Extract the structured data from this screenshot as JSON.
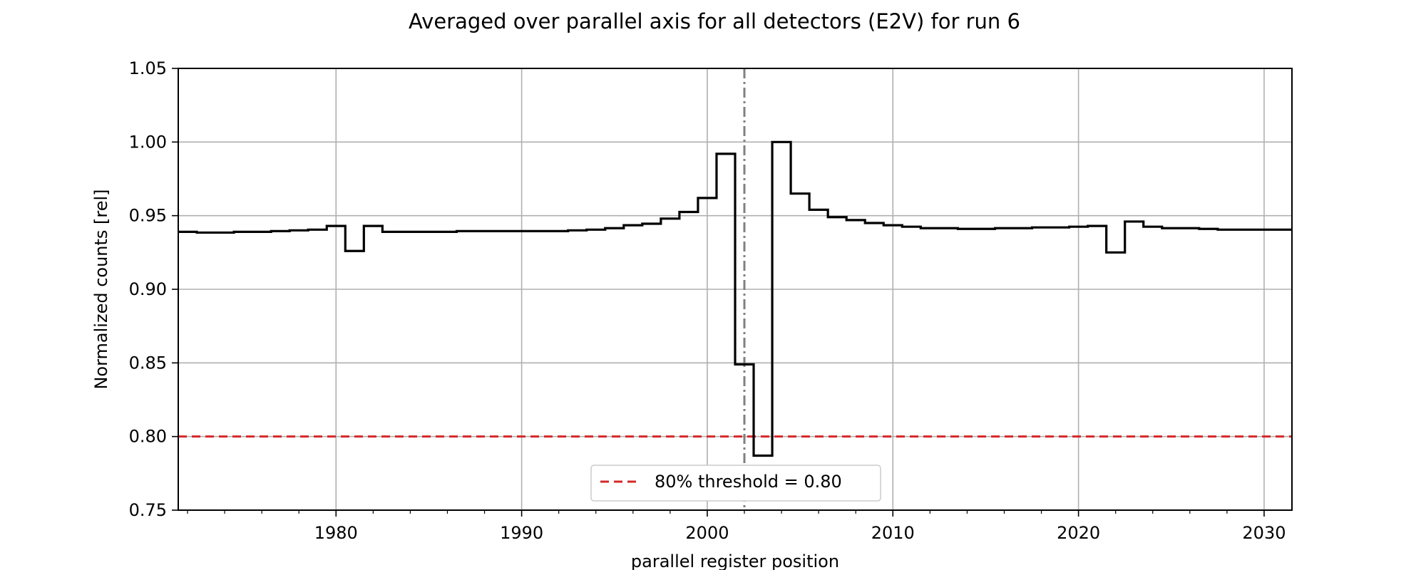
{
  "chart_data": {
    "type": "line",
    "title": "Averaged over parallel axis for all detectors (E2V) for run 6",
    "xlabel": "parallel register position",
    "ylabel": "Normalized counts [rel]",
    "xlim": [
      1971.5,
      2031.5
    ],
    "ylim": [
      0.75,
      1.05
    ],
    "xticks": [
      1980,
      1990,
      2000,
      2010,
      2020,
      2030
    ],
    "yticks": [
      0.75,
      0.8,
      0.85,
      0.9,
      0.95,
      1.0,
      1.05
    ],
    "ytick_labels": [
      "0.75",
      "0.80",
      "0.85",
      "0.90",
      "0.95",
      "1.00",
      "1.05"
    ],
    "grid": true,
    "x_minor_ticks": true,
    "series": [
      {
        "name": "",
        "style": "steps-mid",
        "color": "#000000",
        "x": [
          1971,
          1972,
          1973,
          1974,
          1975,
          1976,
          1977,
          1978,
          1979,
          1980,
          1981,
          1982,
          1983,
          1984,
          1985,
          1986,
          1987,
          1988,
          1989,
          1990,
          1991,
          1992,
          1993,
          1994,
          1995,
          1996,
          1997,
          1998,
          1999,
          2000,
          2001,
          2002,
          2003,
          2004,
          2005,
          2006,
          2007,
          2008,
          2009,
          2010,
          2011,
          2012,
          2013,
          2014,
          2015,
          2016,
          2017,
          2018,
          2019,
          2020,
          2021,
          2022,
          2023,
          2024,
          2025,
          2026,
          2027,
          2028,
          2029,
          2030,
          2031,
          2032
        ],
        "y": [
          0.939,
          0.939,
          0.9385,
          0.9385,
          0.939,
          0.939,
          0.9395,
          0.94,
          0.9405,
          0.943,
          0.926,
          0.943,
          0.939,
          0.939,
          0.939,
          0.939,
          0.9395,
          0.9395,
          0.9395,
          0.9395,
          0.9395,
          0.9395,
          0.94,
          0.9405,
          0.9415,
          0.9435,
          0.9445,
          0.948,
          0.9525,
          0.962,
          0.992,
          0.849,
          0.787,
          1.0,
          0.965,
          0.954,
          0.949,
          0.947,
          0.945,
          0.9435,
          0.9425,
          0.9415,
          0.9415,
          0.941,
          0.941,
          0.9415,
          0.9415,
          0.942,
          0.942,
          0.9425,
          0.943,
          0.925,
          0.946,
          0.9425,
          0.9415,
          0.9415,
          0.941,
          0.9405,
          0.9405,
          0.9405,
          0.9405,
          0.9405
        ]
      }
    ],
    "threshold": {
      "value": 0.8,
      "color": "#d62728",
      "label": "80% threshold = 0.80"
    },
    "vline": {
      "x": 2002,
      "color": "#808080"
    },
    "legend": {
      "placement": "lower-center",
      "entries": [
        "80% threshold = 0.80"
      ]
    }
  }
}
